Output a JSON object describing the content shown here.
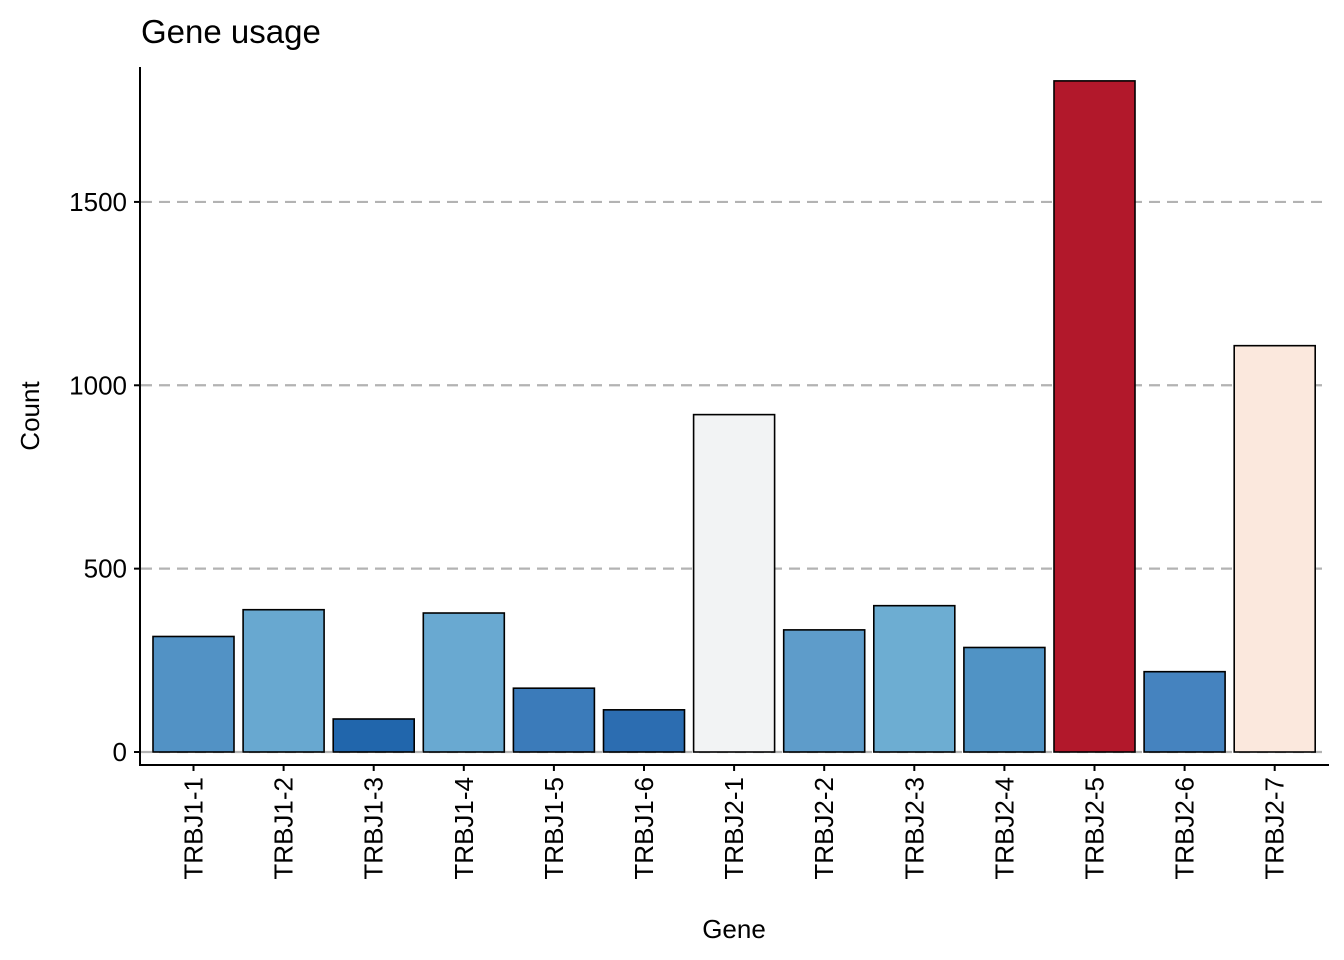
{
  "chart_data": {
    "type": "bar",
    "title": "Gene usage",
    "xlabel": "Gene",
    "ylabel": "Count",
    "ylim": [
      0,
      1835
    ],
    "yticks": [
      0,
      500,
      1000,
      1500
    ],
    "grid": "horizontal dashed",
    "legend": "none",
    "categories": [
      "TRBJ1-1",
      "TRBJ1-2",
      "TRBJ1-3",
      "TRBJ1-4",
      "TRBJ1-5",
      "TRBJ1-6",
      "TRBJ2-1",
      "TRBJ2-2",
      "TRBJ2-3",
      "TRBJ2-4",
      "TRBJ2-5",
      "TRBJ2-6",
      "TRBJ2-7"
    ],
    "values": [
      315,
      388,
      90,
      379,
      174,
      115,
      920,
      333,
      399,
      285,
      1830,
      219,
      1108
    ],
    "colors": [
      "#5292C5",
      "#68A8D0",
      "#2166AC",
      "#69A9D1",
      "#3B7BBA",
      "#2C6DB1",
      "#F2F3F4",
      "#5E9CCA",
      "#6DADD2",
      "#5093C5",
      "#B2182B",
      "#4583BF",
      "#FBE8DD"
    ]
  }
}
